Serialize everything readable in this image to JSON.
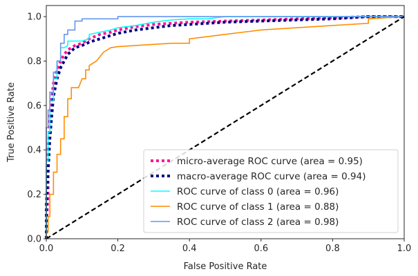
{
  "chart_data": {
    "type": "line",
    "title": "",
    "xlabel": "False Positive Rate",
    "ylabel": "True Positive Rate",
    "xlim": [
      0.0,
      1.0
    ],
    "ylim": [
      0.0,
      1.05
    ],
    "xticks": [
      0.0,
      0.2,
      0.4,
      0.6,
      0.8,
      1.0
    ],
    "yticks": [
      0.0,
      0.2,
      0.4,
      0.6,
      0.8,
      1.0
    ],
    "xtick_labels": [
      "0.0",
      "0.2",
      "0.4",
      "0.6",
      "0.8",
      "1.0"
    ],
    "ytick_labels": [
      "0.0",
      "0.2",
      "0.4",
      "0.6",
      "0.8",
      "1.0"
    ],
    "legend_position": "lower-right",
    "series": [
      {
        "name": "micro-average ROC curve (area = 0.95)",
        "color": "#ff1493",
        "style": "dotted",
        "x": [
          0,
          0.0,
          0.005,
          0.005,
          0.01,
          0.015,
          0.02,
          0.03,
          0.04,
          0.05,
          0.06,
          0.07,
          0.08,
          0.1,
          0.12,
          0.15,
          0.18,
          0.2,
          0.25,
          0.3,
          0.35,
          0.4,
          0.5,
          0.6,
          0.7,
          0.8,
          0.9,
          1.0
        ],
        "y": [
          0,
          0.05,
          0.2,
          0.4,
          0.55,
          0.63,
          0.7,
          0.76,
          0.8,
          0.83,
          0.85,
          0.86,
          0.87,
          0.88,
          0.9,
          0.92,
          0.93,
          0.94,
          0.955,
          0.965,
          0.97,
          0.975,
          0.98,
          0.985,
          0.99,
          0.995,
          1.0,
          1.0
        ]
      },
      {
        "name": "macro-average ROC curve (area = 0.94)",
        "color": "#000080",
        "style": "dotted",
        "x": [
          0,
          0.0,
          0.005,
          0.01,
          0.015,
          0.02,
          0.03,
          0.04,
          0.05,
          0.06,
          0.08,
          0.1,
          0.12,
          0.15,
          0.18,
          0.2,
          0.25,
          0.3,
          0.35,
          0.4,
          0.5,
          0.6,
          0.7,
          0.8,
          0.9,
          1.0
        ],
        "y": [
          0,
          0.15,
          0.3,
          0.45,
          0.55,
          0.64,
          0.72,
          0.77,
          0.8,
          0.83,
          0.86,
          0.87,
          0.885,
          0.9,
          0.915,
          0.925,
          0.94,
          0.95,
          0.96,
          0.965,
          0.975,
          0.98,
          0.985,
          0.99,
          1.0,
          1.0
        ]
      },
      {
        "name": "ROC curve of class 0 (area = 0.96)",
        "color": "#00ffff",
        "style": "solid",
        "x": [
          0,
          0.0,
          0.005,
          0.005,
          0.01,
          0.01,
          0.02,
          0.02,
          0.03,
          0.03,
          0.04,
          0.04,
          0.05,
          0.06,
          0.06,
          0.08,
          0.1,
          0.12,
          0.12,
          0.15,
          0.18,
          0.2,
          0.25,
          0.3,
          0.35,
          0.4,
          0.45,
          0.5,
          1.0
        ],
        "y": [
          0,
          0.35,
          0.35,
          0.48,
          0.48,
          0.62,
          0.62,
          0.72,
          0.72,
          0.8,
          0.8,
          0.86,
          0.86,
          0.87,
          0.89,
          0.89,
          0.89,
          0.9,
          0.92,
          0.93,
          0.94,
          0.95,
          0.96,
          0.975,
          0.985,
          0.99,
          0.99,
          1.0,
          1.0
        ]
      },
      {
        "name": "ROC curve of class 1 (area = 0.88)",
        "color": "#ff8c00",
        "style": "solid",
        "x": [
          0,
          0.0,
          0.005,
          0.005,
          0.01,
          0.01,
          0.02,
          0.02,
          0.03,
          0.03,
          0.04,
          0.04,
          0.05,
          0.05,
          0.06,
          0.06,
          0.07,
          0.07,
          0.09,
          0.1,
          0.11,
          0.11,
          0.12,
          0.12,
          0.14,
          0.15,
          0.16,
          0.17,
          0.18,
          0.2,
          0.25,
          0.3,
          0.35,
          0.4,
          0.4,
          0.5,
          0.55,
          0.6,
          0.7,
          0.8,
          0.9,
          0.9,
          1.0
        ],
        "y": [
          0,
          0.03,
          0.03,
          0.1,
          0.1,
          0.2,
          0.2,
          0.3,
          0.3,
          0.38,
          0.38,
          0.45,
          0.45,
          0.55,
          0.55,
          0.63,
          0.63,
          0.68,
          0.68,
          0.72,
          0.72,
          0.76,
          0.76,
          0.78,
          0.8,
          0.82,
          0.84,
          0.85,
          0.86,
          0.865,
          0.87,
          0.875,
          0.88,
          0.88,
          0.9,
          0.92,
          0.93,
          0.94,
          0.95,
          0.96,
          0.97,
          0.99,
          1.0
        ]
      },
      {
        "name": "ROC curve of class 2 (area = 0.98)",
        "color": "#6495ed",
        "style": "solid",
        "x": [
          0,
          0.0,
          0.005,
          0.005,
          0.01,
          0.01,
          0.02,
          0.02,
          0.03,
          0.03,
          0.04,
          0.04,
          0.05,
          0.05,
          0.06,
          0.06,
          0.08,
          0.08,
          0.1,
          0.1,
          0.2,
          0.2,
          0.3,
          0.5,
          1.0
        ],
        "y": [
          0,
          0.5,
          0.5,
          0.58,
          0.58,
          0.66,
          0.66,
          0.75,
          0.75,
          0.8,
          0.8,
          0.88,
          0.88,
          0.92,
          0.92,
          0.94,
          0.94,
          0.98,
          0.98,
          0.99,
          0.99,
          1.0,
          1.0,
          1.0,
          1.0
        ]
      },
      {
        "name": "",
        "color": "#000000",
        "style": "dashed",
        "x": [
          0,
          1.0
        ],
        "y": [
          0,
          1.0
        ]
      }
    ]
  }
}
